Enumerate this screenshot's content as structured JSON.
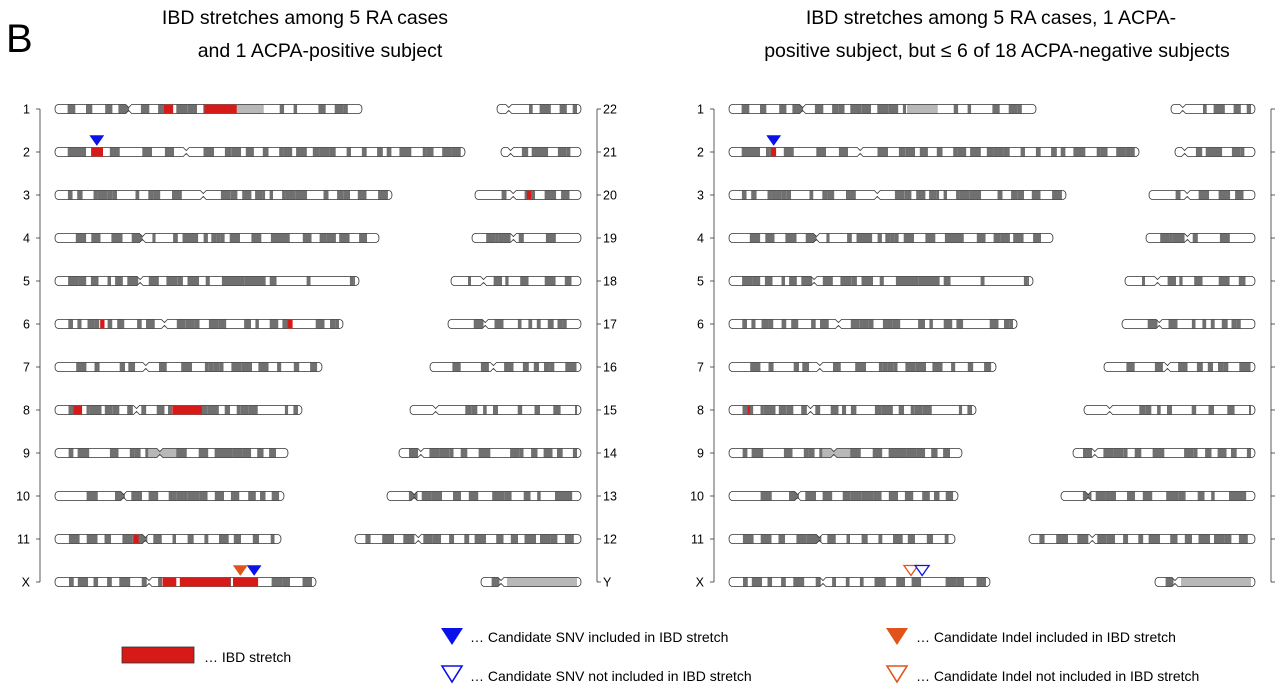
{
  "panel_label": "B",
  "colors": {
    "ibd": "#d61a17",
    "snv": "#0a12ea",
    "indel": "#e2531b",
    "band_dark": "#707070",
    "band_light": "#b8b8b8",
    "outline": "#333333"
  },
  "legend": {
    "ibd_stretch": "… IBD stretch",
    "snv_included": "… Candidate SNV included in IBD stretch",
    "snv_not_included": "… Candidate SNV not included in IBD stretch",
    "indel_included": "… Candidate Indel included in IBD stretch",
    "indel_not_included": "… Candidate Indel not included in IBD stretch"
  },
  "panels": [
    {
      "title_lines": [
        "IBD stretches among 5 RA cases",
        "and 1 ACPA-positive subject"
      ],
      "left_labels": [
        "1",
        "2",
        "3",
        "4",
        "5",
        "6",
        "7",
        "8",
        "9",
        "10",
        "11",
        "X"
      ],
      "right_labels": [
        "22",
        "21",
        "20",
        "19",
        "18",
        "17",
        "16",
        "15",
        "14",
        "13",
        "12",
        "Y"
      ],
      "ibd_regions": [
        {
          "chrom": "1",
          "start": 0.355,
          "end": 0.385
        },
        {
          "chrom": "1",
          "start": 0.487,
          "end": 0.592
        },
        {
          "chrom": "2",
          "start": 0.088,
          "end": 0.117
        },
        {
          "chrom": "6",
          "start": 0.157,
          "end": 0.172
        },
        {
          "chrom": "6",
          "start": 0.808,
          "end": 0.825
        },
        {
          "chrom": "8",
          "start": 0.075,
          "end": 0.11
        },
        {
          "chrom": "8",
          "start": 0.475,
          "end": 0.595
        },
        {
          "chrom": "11",
          "start": 0.348,
          "end": 0.37
        },
        {
          "chrom": "X",
          "start": 0.412,
          "end": 0.465
        },
        {
          "chrom": "X",
          "start": 0.478,
          "end": 0.672
        },
        {
          "chrom": "X",
          "start": 0.682,
          "end": 0.778
        },
        {
          "chrom": "20",
          "start": 0.49,
          "end": 0.53
        }
      ],
      "markers": [
        {
          "chrom": "2",
          "pos": 0.102,
          "kind": "snv",
          "filled": true
        },
        {
          "chrom": "X",
          "pos": 0.71,
          "kind": "indel",
          "filled": true
        },
        {
          "chrom": "X",
          "pos": 0.763,
          "kind": "snv",
          "filled": true
        }
      ]
    },
    {
      "title_lines": [
        "IBD stretches among 5 RA cases, 1 ACPA-",
        "positive subject, but ≤ 6 of 18 ACPA-negative subjects"
      ],
      "left_labels": [
        "1",
        "2",
        "3",
        "4",
        "5",
        "6",
        "7",
        "8",
        "9",
        "10",
        "11",
        "X"
      ],
      "right_labels": [],
      "ibd_regions": [
        {
          "chrom": "2",
          "start": 0.103,
          "end": 0.115
        },
        {
          "chrom": "8",
          "start": 0.076,
          "end": 0.084
        }
      ],
      "markers": [
        {
          "chrom": "2",
          "pos": 0.109,
          "kind": "snv",
          "filled": true
        },
        {
          "chrom": "X",
          "pos": 0.697,
          "kind": "indel",
          "filled": false
        },
        {
          "chrom": "X",
          "pos": 0.74,
          "kind": "snv",
          "filled": false
        }
      ]
    }
  ]
}
